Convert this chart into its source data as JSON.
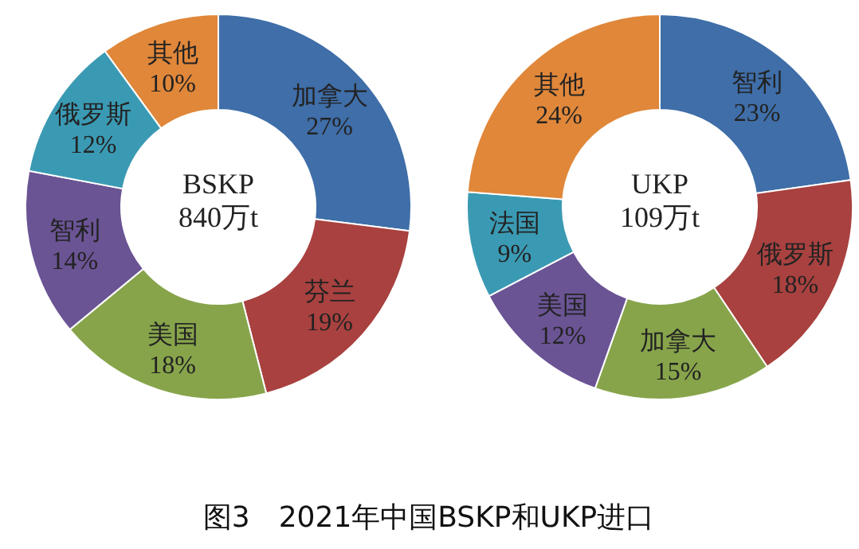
{
  "chart_data": [
    {
      "type": "donut",
      "title": "图3　2021年中国BSKP和UKP进口",
      "annotations": [
        "BSKP",
        "840万t"
      ],
      "categories": [
        "加拿大",
        "芬兰",
        "美国",
        "智利",
        "俄罗斯",
        "其他"
      ],
      "values": [
        27,
        19,
        18,
        14,
        12,
        10
      ],
      "colors": [
        "#3f6ea8",
        "#a8413f",
        "#87a44b",
        "#6a5494",
        "#3b9ab3",
        "#e0873a"
      ],
      "value_labels": [
        "27%",
        "19%",
        "18%",
        "14%",
        "12%",
        "10%"
      ]
    },
    {
      "type": "donut",
      "annotations": [
        "UKP",
        "109万t"
      ],
      "categories": [
        "智利",
        "俄罗斯",
        "加拿大",
        "美国",
        "法国",
        "其他"
      ],
      "values": [
        23,
        18,
        15,
        12,
        9,
        24
      ],
      "colors": [
        "#3f6ea8",
        "#a8413f",
        "#87a44b",
        "#6a5494",
        "#3b9ab3",
        "#e0873a"
      ],
      "value_labels": [
        "23%",
        "18%",
        "15%",
        "12%",
        "9%",
        "24%"
      ]
    }
  ]
}
